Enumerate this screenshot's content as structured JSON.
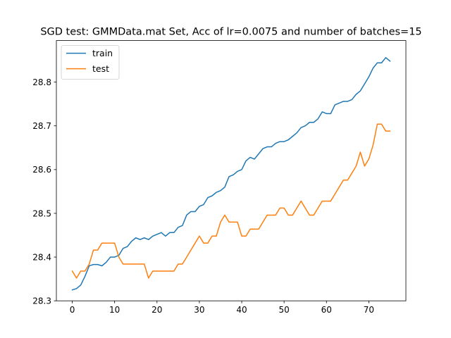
{
  "chart_data": {
    "type": "line",
    "title": "SGD test: GMMData.mat Set, Acc of lr=0.0075 and number of batches=15",
    "xlabel": "",
    "ylabel": "",
    "xlim": [
      -3.75,
      78.75
    ],
    "ylim": [
      28.3,
      28.895
    ],
    "xticks": [
      0,
      10,
      20,
      30,
      40,
      50,
      60,
      70
    ],
    "yticks": [
      28.3,
      28.4,
      28.5,
      28.6,
      28.7,
      28.8
    ],
    "ytick_labels": [
      "28.3",
      "28.4",
      "28.5",
      "28.6",
      "28.7",
      "28.8"
    ],
    "grid": false,
    "legend_position": "top-left",
    "series": [
      {
        "name": "train",
        "color": "#1f77b4",
        "x": [
          0,
          1,
          2,
          3,
          4,
          5,
          6,
          7,
          8,
          9,
          10,
          11,
          12,
          13,
          14,
          15,
          16,
          17,
          18,
          19,
          20,
          21,
          22,
          23,
          24,
          25,
          26,
          27,
          28,
          29,
          30,
          31,
          32,
          33,
          34,
          35,
          36,
          37,
          38,
          39,
          40,
          41,
          42,
          43,
          44,
          45,
          46,
          47,
          48,
          49,
          50,
          51,
          52,
          53,
          54,
          55,
          56,
          57,
          58,
          59,
          60,
          61,
          62,
          63,
          64,
          65,
          66,
          67,
          68,
          69,
          70,
          71,
          72,
          73,
          74,
          75
        ],
        "values": [
          28.325,
          28.328,
          28.336,
          28.356,
          28.38,
          28.383,
          28.383,
          28.38,
          28.388,
          28.4,
          28.4,
          28.404,
          28.42,
          28.424,
          28.436,
          28.444,
          28.44,
          28.444,
          28.44,
          28.448,
          28.452,
          28.456,
          28.448,
          28.456,
          28.456,
          28.468,
          28.472,
          28.496,
          28.504,
          28.504,
          28.516,
          28.52,
          28.536,
          28.54,
          28.548,
          28.552,
          28.56,
          28.584,
          28.588,
          28.596,
          28.6,
          28.62,
          28.628,
          28.624,
          28.636,
          28.648,
          28.652,
          28.652,
          28.66,
          28.664,
          28.664,
          28.668,
          28.676,
          28.684,
          28.696,
          28.7,
          28.708,
          28.708,
          28.716,
          28.732,
          28.728,
          28.728,
          28.748,
          28.752,
          28.756,
          28.756,
          28.76,
          28.772,
          28.78,
          28.796,
          28.812,
          28.832,
          28.844,
          28.844,
          28.856,
          28.848
        ]
      },
      {
        "name": "test",
        "color": "#ff7f0e",
        "x": [
          0,
          1,
          2,
          3,
          4,
          5,
          6,
          7,
          8,
          9,
          10,
          11,
          12,
          13,
          14,
          15,
          16,
          17,
          18,
          19,
          20,
          21,
          22,
          23,
          24,
          25,
          26,
          27,
          28,
          29,
          30,
          31,
          32,
          33,
          34,
          35,
          36,
          37,
          38,
          39,
          40,
          41,
          42,
          43,
          44,
          45,
          46,
          47,
          48,
          49,
          50,
          51,
          52,
          53,
          54,
          55,
          56,
          57,
          58,
          59,
          60,
          61,
          62,
          63,
          64,
          65,
          66,
          67,
          68,
          69,
          70,
          71,
          72,
          73,
          74,
          75
        ],
        "values": [
          28.368,
          28.352,
          28.368,
          28.368,
          28.384,
          28.416,
          28.416,
          28.432,
          28.432,
          28.432,
          28.432,
          28.4,
          28.384,
          28.384,
          28.384,
          28.384,
          28.384,
          28.384,
          28.352,
          28.368,
          28.368,
          28.368,
          28.368,
          28.368,
          28.368,
          28.384,
          28.384,
          28.4,
          28.416,
          28.432,
          28.448,
          28.432,
          28.432,
          28.448,
          28.448,
          28.48,
          28.496,
          28.48,
          28.48,
          28.48,
          28.448,
          28.448,
          28.464,
          28.464,
          28.464,
          28.48,
          28.496,
          28.496,
          28.496,
          28.512,
          28.512,
          28.496,
          28.496,
          28.512,
          28.528,
          28.512,
          28.496,
          28.496,
          28.512,
          28.528,
          28.528,
          28.528,
          28.544,
          28.56,
          28.576,
          28.576,
          28.592,
          28.608,
          28.64,
          28.608,
          28.624,
          28.656,
          28.704,
          28.704,
          28.688,
          28.688
        ]
      }
    ]
  }
}
